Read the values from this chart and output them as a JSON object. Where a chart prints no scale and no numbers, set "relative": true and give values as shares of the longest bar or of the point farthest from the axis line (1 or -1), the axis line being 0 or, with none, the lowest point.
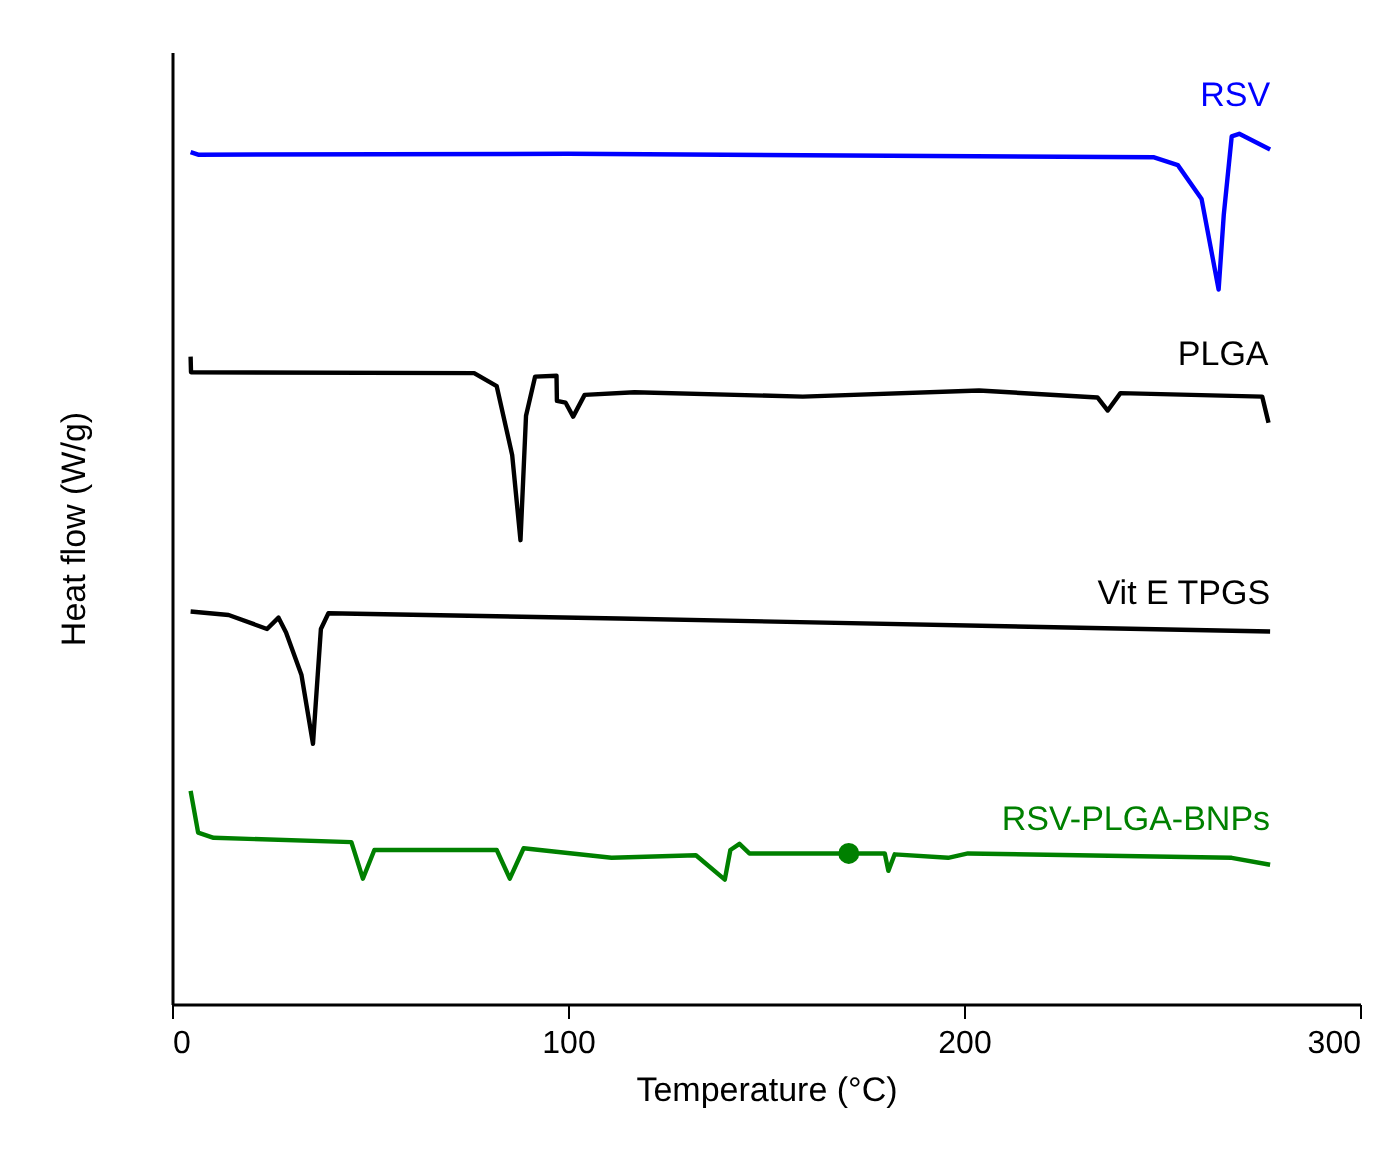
{
  "chart_data": {
    "type": "line",
    "relative": true,
    "xlabel": "Temperature (°C)",
    "ylabel": "Heat flow (W/g)",
    "xlim": [
      0,
      300
    ],
    "xticks": [
      0,
      100,
      200,
      300
    ],
    "grid": false,
    "legend": false,
    "series": [
      {
        "name": "RSV",
        "color": "#0000ff",
        "x": [
          4.7,
          6.6,
          100,
          248,
          254,
          260,
          264.3,
          265.6,
          267.6,
          269.5,
          277.3
        ],
        "values": [
          0.979,
          0.976,
          0.977,
          0.973,
          0.964,
          0.925,
          0.821,
          0.907,
          0.997,
          1,
          0.982
        ]
      },
      {
        "name": "PLGA",
        "color": "#000000",
        "x": [
          4.7,
          4.8,
          76.3,
          82,
          85.9,
          88,
          89.4,
          91.7,
          97.1,
          97.2,
          99.4,
          101.3,
          104.2,
          116.8,
          159.3,
          203.8,
          233.7,
          236.3,
          239.5,
          275.3,
          276.9
        ],
        "values": [
          0.744,
          0.726,
          0.725,
          0.71,
          0.631,
          0.533,
          0.676,
          0.721,
          0.722,
          0.693,
          0.691,
          0.675,
          0.7,
          0.703,
          0.698,
          0.705,
          0.697,
          0.682,
          0.702,
          0.698,
          0.668
        ]
      },
      {
        "name": "Vit E TPGS",
        "color": "#000000",
        "x": [
          4.7,
          14.3,
          24,
          26.9,
          28.8,
          32.7,
          35.6,
          37.6,
          39.5,
          112.9,
          277.3
        ],
        "values": [
          0.451,
          0.447,
          0.431,
          0.444,
          0.427,
          0.378,
          0.299,
          0.431,
          0.449,
          0.443,
          0.428
        ]
      },
      {
        "name": "RSV-PLGA-BNPs",
        "color": "#008000",
        "x": [
          4.7,
          6.6,
          10.5,
          45.3,
          48.2,
          51.1,
          82,
          85.3,
          88.8,
          111,
          132.3,
          139.6,
          141,
          143.3,
          145.8,
          180,
          180.9,
          182.5,
          196,
          201,
          267.6,
          277.3
        ],
        "values": [
          0.245,
          0.197,
          0.191,
          0.186,
          0.144,
          0.177,
          0.177,
          0.144,
          0.179,
          0.168,
          0.171,
          0.143,
          0.177,
          0.184,
          0.173,
          0.173,
          0.153,
          0.172,
          0.168,
          0.173,
          0.168,
          0.16
        ]
      },
      {
        "type": "scatter",
        "color": "#008000",
        "marker": "circle",
        "x": [
          170.9
        ],
        "values": [
          0.173
        ]
      }
    ]
  }
}
